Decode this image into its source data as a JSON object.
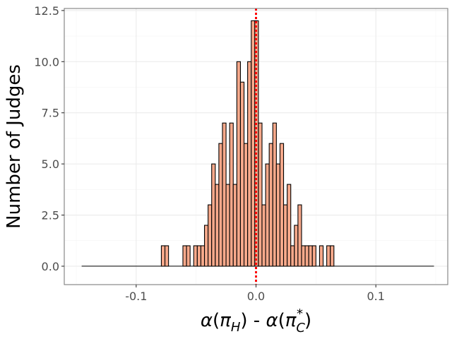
{
  "chart_data": {
    "type": "bar",
    "xlabel": "",
    "ylabel": "Number of Judges",
    "xlim": [
      -0.16,
      0.16
    ],
    "ylim": [
      -0.9,
      12.6
    ],
    "x_ticks": [
      {
        "value": -0.1,
        "label": "-0.1"
      },
      {
        "value": 0.0,
        "label": "0.0"
      },
      {
        "value": 0.1,
        "label": "0.1"
      }
    ],
    "y_ticks": [
      {
        "value": 0.0,
        "label": "0.0"
      },
      {
        "value": 2.5,
        "label": "2.5"
      },
      {
        "value": 5.0,
        "label": "5.0"
      },
      {
        "value": 7.5,
        "label": "7.5"
      },
      {
        "value": 10.0,
        "label": "10.0"
      },
      {
        "value": 12.5,
        "label": "12.5"
      }
    ],
    "grid": true,
    "bin_range": [
      -0.1455,
      0.1485
    ],
    "bin_width": 0.003,
    "bar_centers": [
      -0.0775,
      -0.0745,
      -0.0595,
      -0.0565,
      -0.0505,
      -0.0475,
      -0.0445,
      -0.0415,
      -0.0385,
      -0.0355,
      -0.0325,
      -0.0295,
      -0.0265,
      -0.0235,
      -0.0205,
      -0.0175,
      -0.0145,
      -0.0115,
      -0.0085,
      -0.0055,
      -0.0025,
      0.0005,
      0.0035,
      0.0065,
      0.0095,
      0.0125,
      0.0155,
      0.0185,
      0.0215,
      0.0245,
      0.0275,
      0.0305,
      0.0335,
      0.0365,
      0.0395,
      0.0425,
      0.0455,
      0.0485,
      0.0545,
      0.0605,
      0.0635
    ],
    "values": [
      1,
      1,
      1,
      1,
      1,
      1,
      1,
      2,
      3,
      5,
      4,
      6,
      7,
      4,
      7,
      4,
      10,
      9,
      6,
      10,
      12,
      12,
      7,
      3,
      5,
      6,
      7,
      5,
      6,
      3,
      4,
      1,
      2,
      3,
      1,
      1,
      1,
      1,
      1,
      1,
      1
    ],
    "reference_line": {
      "x": 0.0,
      "style": "dotted",
      "color": "#ff0000"
    },
    "colors": {
      "bar_fill": "#f7a98b",
      "bar_stroke": "#000000",
      "reference_line": "#ff0000",
      "grid_major": "#ebebeb",
      "grid_minor": "#f4f4f4",
      "panel_border": "#7f7f7f",
      "tick_text": "#4d4d4d"
    }
  }
}
